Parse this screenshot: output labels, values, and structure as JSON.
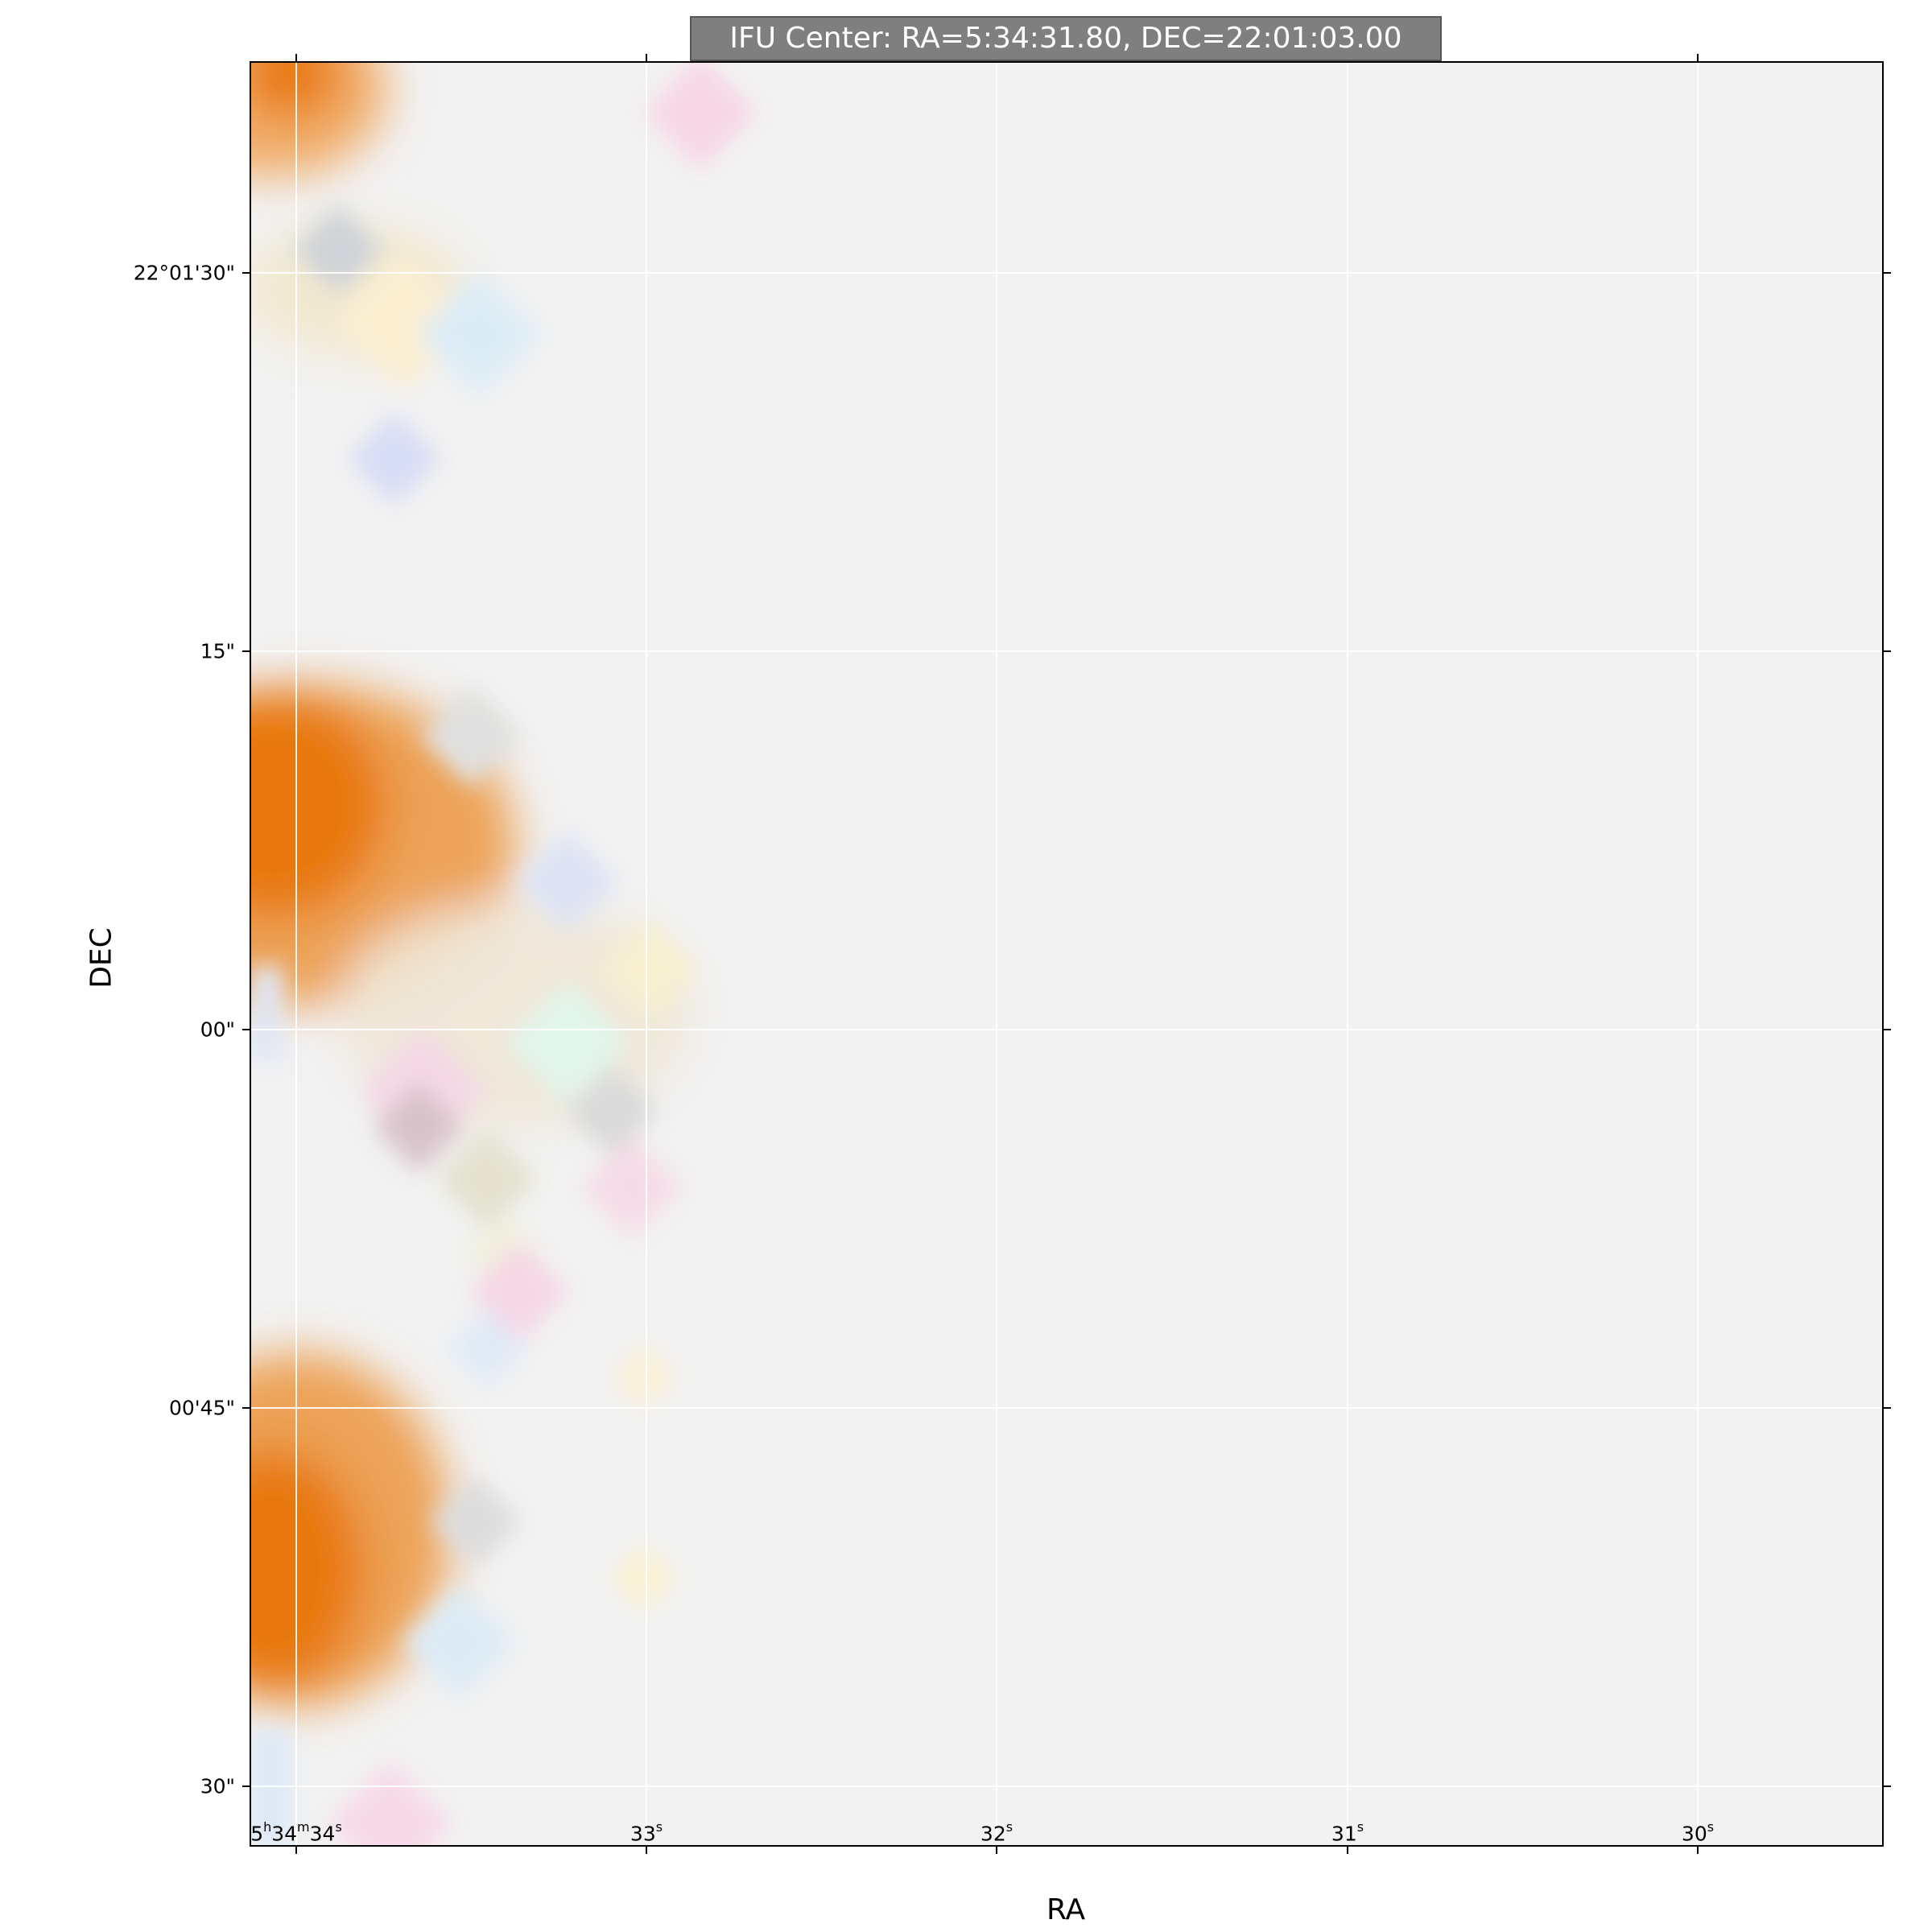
{
  "title": "IFU Center: RA=5:34:31.80, DEC=22:01:03.00",
  "xlabel": "RA",
  "ylabel": "DEC",
  "image": {
    "colors": {
      "background": "#f2f2f2",
      "emission": "#e8780a",
      "emission_light": "#f5b06a",
      "gridline": "#ffffff",
      "title_box": "#7f7f7f"
    }
  },
  "x_ticks": [
    {
      "h": "5",
      "m": "34",
      "s": "34"
    },
    {
      "s": "33"
    },
    {
      "s": "32"
    },
    {
      "s": "31"
    },
    {
      "s": "30"
    }
  ],
  "y_ticks": [
    {
      "label": "22°01'30\""
    },
    {
      "label": "15\""
    },
    {
      "label": "00\""
    },
    {
      "label": "00'45\""
    },
    {
      "label": "30\""
    }
  ]
}
